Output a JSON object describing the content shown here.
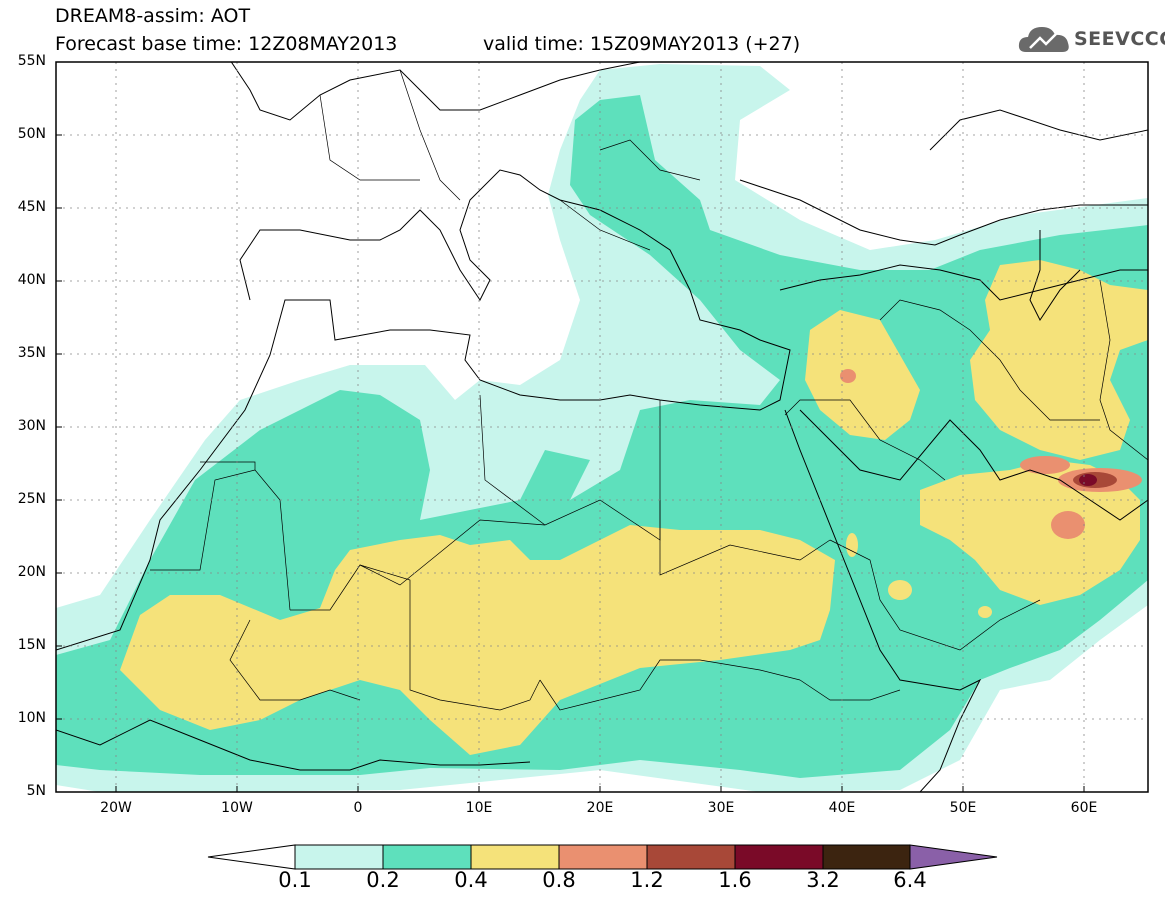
{
  "header": {
    "line1": "DREAM8-assim: AOT",
    "line2": "Forecast base time: 12Z08MAY2013",
    "valid": "valid time: 15Z09MAY2013 (+27)"
  },
  "logo": {
    "text": "SEEVCCC",
    "icon": "cloud-icon"
  },
  "map": {
    "lon_range": [
      -25,
      65
    ],
    "lat_range": [
      5,
      55
    ],
    "lat_labels": [
      "55N",
      "50N",
      "45N",
      "40N",
      "35N",
      "30N",
      "25N",
      "20N",
      "15N",
      "10N",
      "5N"
    ],
    "lon_labels": [
      "20W",
      "10W",
      "0",
      "10E",
      "20E",
      "30E",
      "40E",
      "50E",
      "60E"
    ],
    "gridlines": "dotted"
  },
  "colorbar": {
    "levels": [
      "0.1",
      "0.2",
      "0.4",
      "0.8",
      "1.2",
      "1.6",
      "3.2",
      "6.4"
    ],
    "colors": [
      "#ffffff",
      "#c8f5ec",
      "#5ee0bc",
      "#f5e27a",
      "#ea9070",
      "#a84838",
      "#7a0a28",
      "#3c2410",
      "#8a60a8"
    ]
  }
}
